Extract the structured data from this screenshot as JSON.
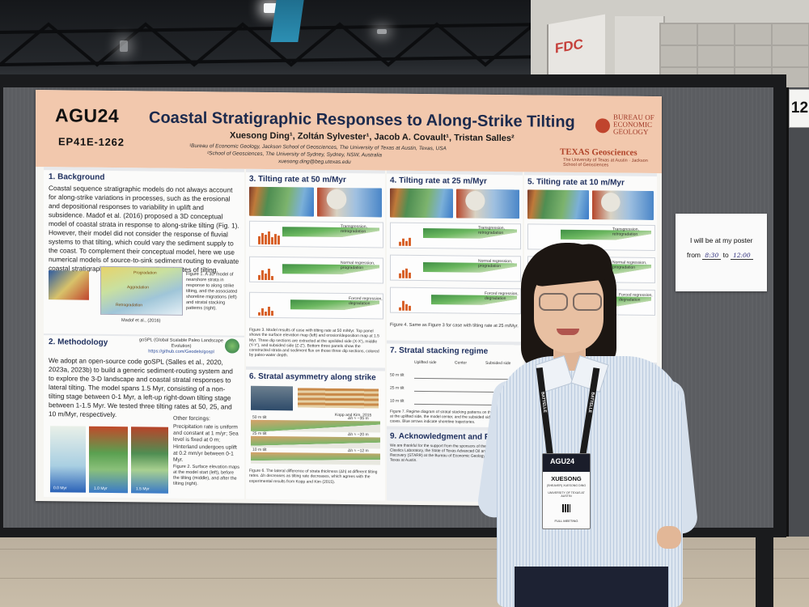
{
  "scene": {
    "fdc_sign": "FDC",
    "board_number": "12",
    "colors": {
      "poster_header": "#f2c8ad",
      "title_navy": "#1c2a4d",
      "section_blue": "#1e2f5e",
      "board_fabric": "#5b5d61"
    }
  },
  "poster": {
    "logo": "AGU24",
    "code": "EP41E-1262",
    "title": "Coastal Stratigraphic Responses to Along-Strike Tilting",
    "authors": "Xuesong Ding¹, Zoltán Sylvester¹, Jacob A. Covault¹, Tristan Salles²",
    "affiliation1": "¹Bureau of Economic Geology, Jackson School of Geosciences, The University of Texas at Austin, Texas, USA",
    "affiliation2": "²School of Geosciences, The University of Sydney, Sydney, NSW, Australia",
    "email": "xuesong.ding@beg.utexas.edu",
    "beg_logo": "BUREAU OF ECONOMIC GEOLOGY",
    "texas_logo": "TEXAS Geosciences",
    "texas_sub": "The University of Texas at Austin · Jackson School of Geosciences",
    "sections": {
      "background": {
        "title": "1. Background",
        "text": "Coastal sequence stratigraphic models do not always account for along-strike variations in processes, such as the erosional and depositional responses to variability in uplift and subsidence. Madof et al. (2016) proposed a 3D conceptual model of coastal strata in response to along-strike tilting (Fig. 1). However, their model did not consider the response of fluvial systems to that tilting, which could vary the sediment supply to the coast. To complement their conceptual model, here we use numerical models of source-to-sink sediment routing to evaluate coastal stratigraphic responses to different rates of tilting.",
        "fig_caption": "Figure 1. A 3D model of nearshore strata in response to along strike tilting, and the associated shoreline migrations (left) and stratal stacking patterns (right).",
        "fig_credit": "Madof et al., (2016)",
        "fig_labels": [
          "Progradation",
          "Aggradation",
          "Retrogradation"
        ]
      },
      "methodology": {
        "title": "2. Methodology",
        "gospl": "goSPL (Global Scalable Paleo Landscape Evolution)",
        "gospl_url": "https://github.com/Geodels/gospl",
        "text": "We adopt an open-source code goSPL (Salles et al., 2020, 2023a, 2023b) to build a generic sediment-routing system and to explore the 3-D landscape and coastal stratal responses to lateral tilting. The model spans 1.5 Myr, consisting of a non-tilting stage between 0-1 Myr, a left-up right-down tilting stage between 1-1.5 Myr. We tested three tilting rates at 50, 25, and 10 m/Myr, respectively.",
        "forcings_title": "Other forcings:",
        "forcings": "Precipitation rate is uniform and constant at 1 m/yr; Sea level is fixed at 0 m; Hinterland undergoes uplift at 0.2 mm/yr between 0-1 Myr.",
        "fig_caption": "Figure 2. Surface elevation maps at the model start (left), before the tilting (middle), and after the tilting (right).",
        "map_labels": [
          "0.0 Myr",
          "1.0 Myr",
          "1.5 Myr"
        ]
      },
      "tilt50": {
        "title": "3. Tilting rate at 50 m/Myr",
        "labels": [
          "Transgression, retrogradation",
          "Normal regression, progradation",
          "Forced regression, degradation"
        ],
        "caption": "Figure 3. Model results of case with tilting rate at 50 m/Myr. Top panel shows the surface elevation map (left) and erosion/deposition map at 1.5 Myr. Three dip sections are extracted at the upslided side (X-X'), middle (Y-Y'), and subsided side (Z-Z'). Bottom three panels show the constructed strata and sediment flux on those three dip sections, colored by paleo-water depth."
      },
      "asymmetry": {
        "title": "6. Stratal asymmetry along strike",
        "credit": "Kopp and Kim, 2015",
        "rows": [
          "50 m tilt",
          "25 m tilt",
          "10 m tilt"
        ],
        "deltas": [
          "Δh ≈ ~35 m",
          "Δh ≈ ~20 m",
          "Δh ≈ ~12 m"
        ],
        "caption": "Figure 6. The lateral difference of strata thickness (Δh) at different tilting rates. Δh decreases as tilting rate decreases, which agrees with the experimental results from Kopp and Kim (2015)."
      },
      "tilt25": {
        "title": "4. Tilting rate at 25 m/Myr",
        "labels": [
          "Transgression, retrogradation",
          "Normal regression, progradation",
          "Forced regression, degradation"
        ],
        "caption": "Figure 4. Same as Figure 3 for case with tilting rate at 25 m/Myr."
      },
      "stacking": {
        "title": "7. Stratal stacking regime",
        "columns": [
          "Uplifted side",
          "Center",
          "Subsided side"
        ],
        "rows": [
          "50 m tilt",
          "25 m tilt",
          "10 m tilt"
        ],
        "caption": "Figure 7. Regime diagram of stratal stacking patterns on three dip sections at the uplifted side, the model center, and the subsided side in all three cases. Blue arrows indicate shoreline trajectories."
      },
      "ack": {
        "title": "9. Acknowledgment and References",
        "text": "We are thankful for the support from the sponsors of the Quantitative Clastics Laboratory, the State of Texas Advanced Oil and Gas Resource Recovery (STARR) at the Bureau of Economic Geology, The University of Texas at Austin."
      },
      "tilt10": {
        "title": "5. Tilting rate at 10 m/Myr",
        "labels": [
          "Transgression, retrogradation",
          "Normal regression, progradation",
          "Forced regression, degradation"
        ]
      }
    }
  },
  "sign": {
    "line1": "I will be at my poster",
    "from_label": "from",
    "from_time": "8:30",
    "to_label": "to",
    "to_time": "12:00"
  },
  "badge": {
    "lanyard_text": "BATTELLE",
    "event": "AGU24",
    "name": "XUESONG",
    "full_name": "(SHEAVER) XUESONG DING",
    "org": "UNIVERSITY OF TEXAS AT AUSTIN",
    "type": "FULL MEETING"
  }
}
